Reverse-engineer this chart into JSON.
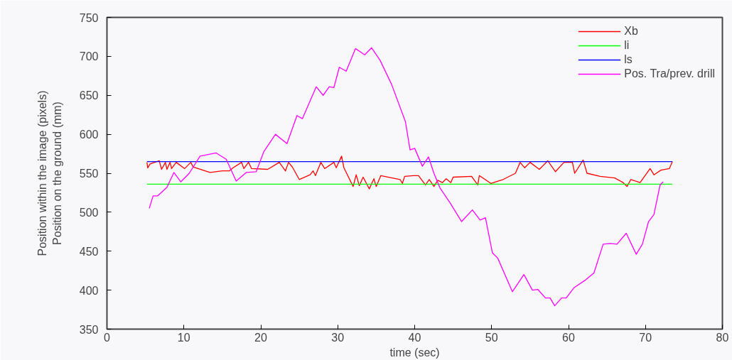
{
  "chart_data": {
    "type": "line",
    "xlabel": "time (sec)",
    "ylabel": "Position within the image (pixels)\nPosition on the ground (mm)",
    "xlim": [
      0,
      80
    ],
    "xticks": [
      0,
      10,
      20,
      30,
      40,
      50,
      60,
      70,
      80
    ],
    "ylim": [
      350,
      750
    ],
    "yticks": [
      350,
      400,
      450,
      500,
      550,
      600,
      650,
      700,
      750
    ],
    "grid": false,
    "legend": "top right",
    "series": [
      {
        "name": "Xb",
        "color": "#ff0000",
        "x": [
          5.2,
          5.3,
          5.6,
          6.8,
          7.1,
          7.6,
          7.8,
          8.2,
          8.4,
          9.0,
          10.1,
          10.9,
          11.2,
          13.4,
          15.0,
          15.9,
          16.4,
          17.5,
          17.8,
          18.4,
          18.8,
          20.9,
          22.4,
          23.2,
          23.6,
          24.1,
          25.0,
          26.4,
          26.8,
          27.1,
          27.8,
          28.3,
          29.5,
          29.8,
          30.5,
          30.8,
          32.0,
          32.4,
          32.8,
          33.3,
          34.1,
          34.7,
          35.0,
          35.6,
          38.1,
          38.4,
          38.7,
          39.8,
          40.5,
          41.4,
          41.9,
          42.5,
          43.0,
          43.6,
          44.1,
          44.7,
          45.0,
          47.4,
          48.2,
          48.4,
          49.9,
          51.5,
          53.1,
          53.7,
          54.3,
          55.0,
          56.2,
          57.3,
          58.3,
          59.4,
          60.5,
          60.8,
          61.9,
          62.4,
          64.1,
          66.0,
          67.1,
          67.6,
          68.1,
          69.3,
          70.6,
          71.1,
          72.0,
          73.1,
          73.5
        ],
        "values": [
          564,
          557,
          562,
          566,
          555,
          564,
          555,
          564,
          556,
          564,
          556,
          564,
          558,
          551,
          553,
          553,
          557,
          564,
          556,
          564,
          556,
          555,
          564,
          553,
          564,
          558,
          542,
          548,
          553,
          547,
          564,
          556,
          564,
          557,
          572,
          557,
          533,
          548,
          534,
          545,
          530,
          543,
          533,
          547,
          542,
          537,
          546,
          547,
          547,
          535,
          542,
          533,
          541,
          538,
          543,
          538,
          545,
          546,
          535,
          547,
          537,
          542,
          550,
          564,
          557,
          564,
          555,
          566,
          552,
          564,
          564,
          550,
          567,
          550,
          546,
          544,
          538,
          533,
          542,
          538,
          556,
          548,
          554,
          556,
          565
        ]
      },
      {
        "name": "li",
        "color": "#00ff00",
        "x": [
          5.2,
          73.5
        ],
        "values": [
          536,
          536
        ]
      },
      {
        "name": "ls",
        "color": "#0000ff",
        "x": [
          5.2,
          73.5
        ],
        "values": [
          565,
          565
        ]
      },
      {
        "name": "Pos. Tra/prev. drill",
        "color": "#ff00ff",
        "x": [
          5.5,
          6.0,
          6.6,
          7.8,
          8.7,
          9.6,
          10.7,
          12.1,
          14.2,
          15.5,
          16.8,
          18.1,
          19.4,
          20.4,
          21.9,
          23.4,
          24.7,
          25.4,
          27.2,
          28.1,
          28.9,
          29.5,
          30.2,
          31.1,
          32.3,
          33.5,
          34.4,
          35.5,
          37.0,
          38.8,
          39.4,
          40.0,
          41.0,
          41.8,
          42.5,
          43.3,
          44.6,
          46.1,
          47.5,
          48.5,
          49.2,
          50.1,
          50.8,
          52.7,
          54.2,
          55.3,
          56.0,
          57.0,
          57.6,
          58.2,
          59.1,
          59.7,
          60.7,
          62.2,
          63.3,
          64.5,
          65.4,
          66.3,
          67.5,
          68.8,
          69.6,
          70.4,
          71.1,
          71.9,
          72.3
        ],
        "values": [
          505,
          521,
          521,
          532,
          551,
          539,
          550,
          572,
          576,
          568,
          540,
          551,
          552,
          578,
          600,
          588,
          624,
          620,
          661,
          650,
          661,
          660,
          686,
          681,
          710,
          702,
          711,
          695,
          664,
          616,
          580,
          582,
          559,
          571,
          550,
          531,
          512,
          488,
          503,
          490,
          493,
          448,
          441,
          398,
          420,
          400,
          401,
          390,
          390,
          380,
          390,
          390,
          403,
          413,
          422,
          459,
          460,
          459,
          473,
          446,
          459,
          488,
          497,
          535,
          539
        ]
      }
    ]
  }
}
